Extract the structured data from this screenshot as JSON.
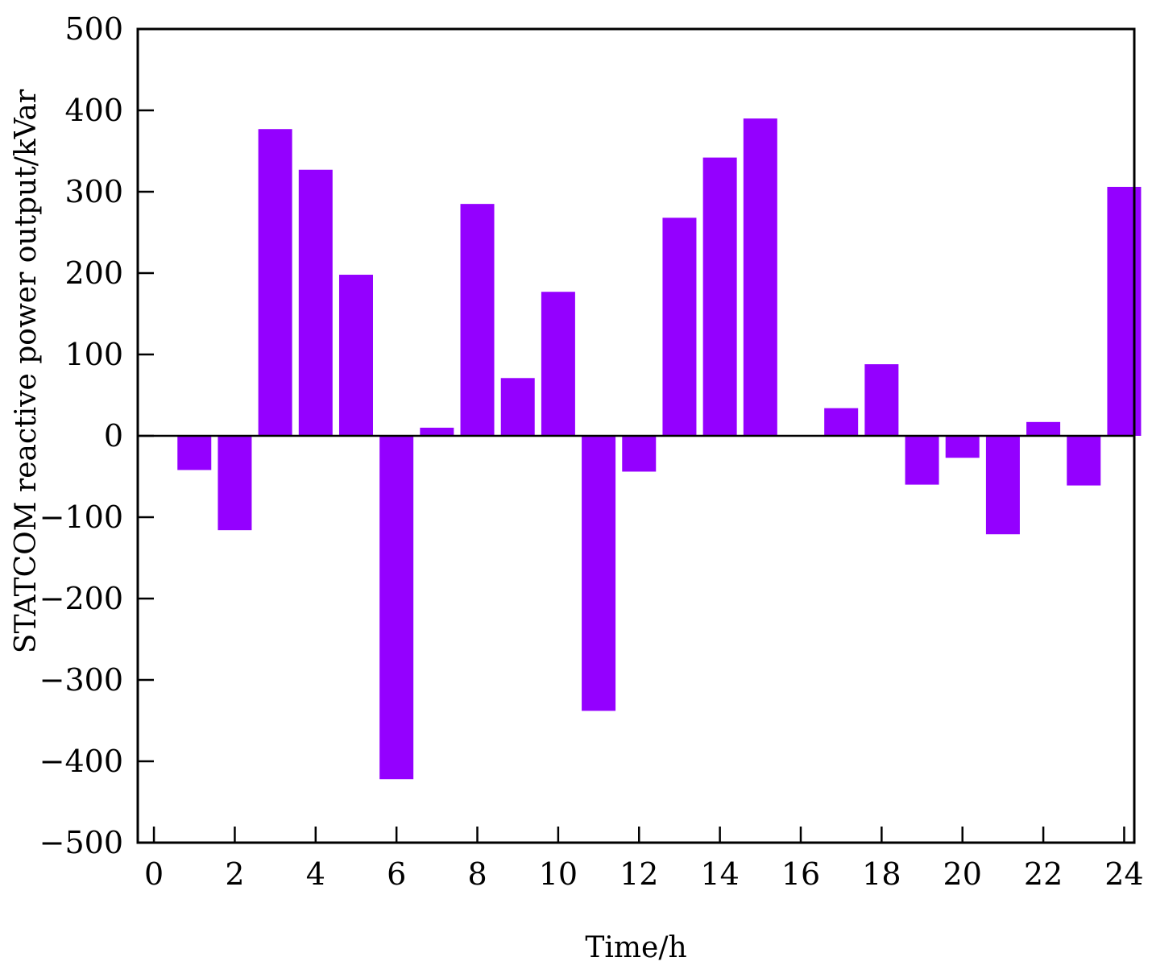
{
  "chart_data": {
    "type": "bar",
    "title": "",
    "xlabel": "Time/h",
    "ylabel": "STATCOM reactive power output/kVar",
    "x": [
      1,
      2,
      3,
      4,
      5,
      6,
      7,
      8,
      9,
      10,
      11,
      12,
      13,
      14,
      15,
      16,
      17,
      18,
      19,
      20,
      21,
      22,
      23,
      24
    ],
    "values": [
      -42,
      -116,
      377,
      327,
      198,
      -422,
      10,
      285,
      71,
      177,
      -338,
      -44,
      268,
      342,
      390,
      0,
      34,
      88,
      -60,
      -27,
      -121,
      17,
      -61,
      306
    ],
    "xlim": [
      -0.4,
      24.25
    ],
    "ylim": [
      -500,
      500
    ],
    "xticks": [
      "0",
      "2",
      "4",
      "6",
      "8",
      "10",
      "12",
      "14",
      "16",
      "18",
      "20",
      "22",
      "24"
    ],
    "yticks": [
      "−500",
      "−400",
      "−300",
      "−200",
      "−100",
      "0",
      "100",
      "200",
      "300",
      "400",
      "500"
    ],
    "bar_color": "#9400ff",
    "grid": false,
    "legend": "none"
  }
}
